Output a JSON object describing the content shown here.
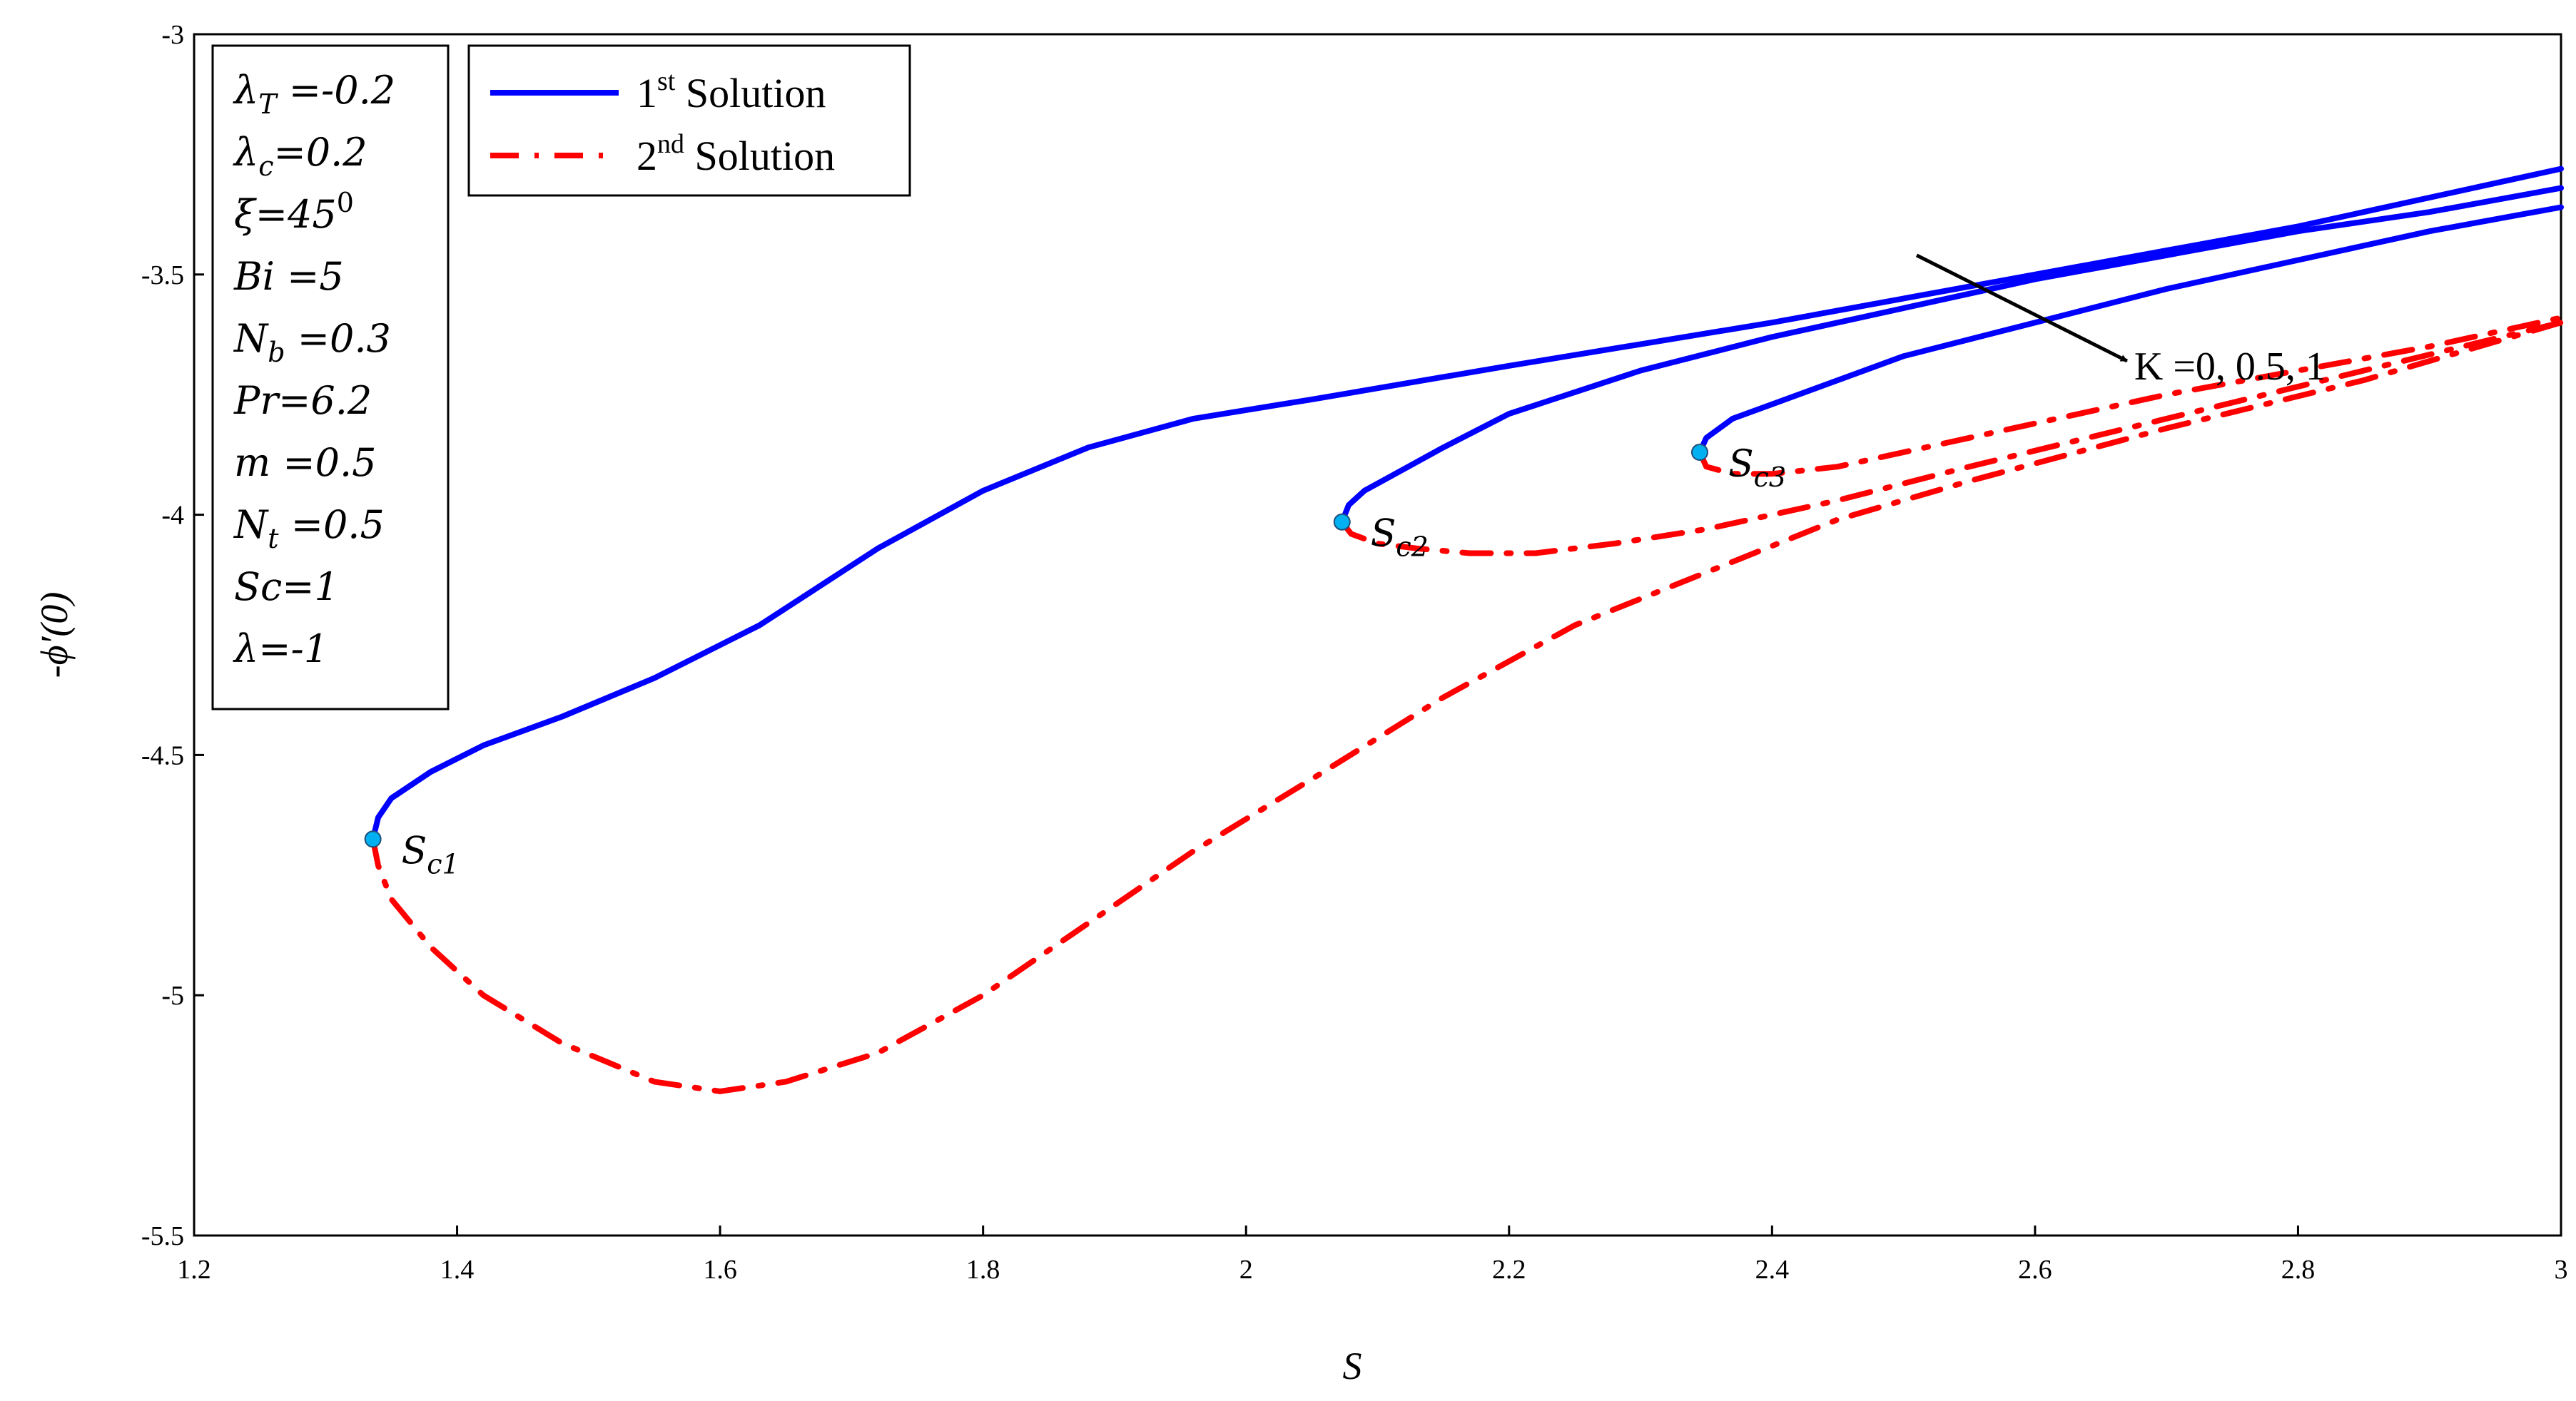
{
  "chart_data": {
    "type": "line",
    "title": "",
    "xlabel": "S",
    "ylabel": "-ϕ′(0)",
    "xlim": [
      1.2,
      3.0
    ],
    "ylim": [
      -5.5,
      -3.0
    ],
    "x_ticks": [
      "1.2",
      "1.4",
      "1.6",
      "1.8",
      "2",
      "2.2",
      "2.4",
      "2.6",
      "2.8",
      "3"
    ],
    "y_ticks": [
      "-3",
      "-3.5",
      "-4",
      "-4.5",
      "-5",
      "-5.5"
    ],
    "grid": false,
    "legend_position": "top-left",
    "legend": [
      {
        "label": "1",
        "sup": "st",
        "rest": " Solution",
        "color": "#0000ff",
        "style": "solid"
      },
      {
        "label": "2",
        "sup": "nd",
        "rest": " Solution",
        "color": "#ff0000",
        "style": "dash-dot"
      }
    ],
    "parameters": [
      {
        "base": "λ",
        "sub": "T",
        "rest": " =-0.2"
      },
      {
        "base": "λ",
        "sub": "c",
        "rest": "=0.2"
      },
      {
        "base": "ξ=45",
        "sup": "0",
        "rest": ""
      },
      {
        "base": "Bi =5",
        "rest": ""
      },
      {
        "base": "N",
        "sub": "b",
        "rest": " =0.3"
      },
      {
        "base": "Pr=6.2",
        "rest": ""
      },
      {
        "base": "m =0.5",
        "rest": ""
      },
      {
        "base": "N",
        "sub": "t",
        "rest": " =0.5"
      },
      {
        "base": "Sc=1",
        "rest": ""
      },
      {
        "base": "λ=-1",
        "rest": ""
      }
    ],
    "annotation": {
      "text": "K =0, 0.5, 1",
      "arrow_from": [
        2.51,
        -3.46
      ],
      "arrow_to": [
        2.67,
        -3.68
      ]
    },
    "critical_points": [
      {
        "label": "S",
        "sub": "c1",
        "x": 1.336,
        "y": -4.675
      },
      {
        "label": "S",
        "sub": "c2",
        "x": 2.073,
        "y": -4.015
      },
      {
        "label": "S",
        "sub": "c3",
        "x": 2.345,
        "y": -3.87
      }
    ],
    "series": [
      {
        "name": "1st Solution",
        "solution": 1,
        "K": 0,
        "color": "#0000ff",
        "x": [
          1.336,
          1.34,
          1.35,
          1.38,
          1.42,
          1.48,
          1.55,
          1.63,
          1.72,
          1.8,
          1.88,
          1.96,
          2.05,
          2.2,
          2.4,
          2.6,
          2.8,
          3.0
        ],
        "y": [
          -4.675,
          -4.63,
          -4.59,
          -4.535,
          -4.48,
          -4.42,
          -4.34,
          -4.23,
          -4.07,
          -3.95,
          -3.86,
          -3.8,
          -3.76,
          -3.69,
          -3.6,
          -3.5,
          -3.4,
          -3.28
        ]
      },
      {
        "name": "1st Solution",
        "solution": 1,
        "K": 0.5,
        "color": "#0000ff",
        "x": [
          2.073,
          2.078,
          2.09,
          2.11,
          2.15,
          2.2,
          2.3,
          2.4,
          2.5,
          2.6,
          2.7,
          2.8,
          2.9,
          3.0
        ],
        "y": [
          -4.015,
          -3.98,
          -3.95,
          -3.92,
          -3.86,
          -3.79,
          -3.7,
          -3.63,
          -3.57,
          -3.51,
          -3.46,
          -3.41,
          -3.37,
          -3.32
        ]
      },
      {
        "name": "1st Solution",
        "solution": 1,
        "K": 1,
        "color": "#0000ff",
        "x": [
          2.345,
          2.35,
          2.37,
          2.4,
          2.45,
          2.5,
          2.6,
          2.7,
          2.8,
          2.9,
          3.0
        ],
        "y": [
          -3.87,
          -3.84,
          -3.8,
          -3.77,
          -3.72,
          -3.67,
          -3.6,
          -3.53,
          -3.47,
          -3.41,
          -3.36
        ]
      },
      {
        "name": "2nd Solution",
        "solution": 2,
        "K": 0,
        "color": "#ff0000",
        "x": [
          1.336,
          1.34,
          1.35,
          1.38,
          1.42,
          1.48,
          1.55,
          1.6,
          1.65,
          1.72,
          1.8,
          1.88,
          1.96,
          2.05,
          2.15,
          2.25,
          2.35,
          2.45,
          2.55,
          2.7,
          2.85,
          3.0
        ],
        "y": [
          -4.675,
          -4.73,
          -4.8,
          -4.9,
          -5.0,
          -5.1,
          -5.18,
          -5.2,
          -5.18,
          -5.12,
          -5.0,
          -4.85,
          -4.7,
          -4.55,
          -4.38,
          -4.23,
          -4.12,
          -4.01,
          -3.93,
          -3.82,
          -3.72,
          -3.6
        ]
      },
      {
        "name": "2nd Solution",
        "solution": 2,
        "K": 0.5,
        "color": "#ff0000",
        "x": [
          2.073,
          2.08,
          2.1,
          2.13,
          2.17,
          2.22,
          2.28,
          2.35,
          2.45,
          2.55,
          2.7,
          2.85,
          3.0
        ],
        "y": [
          -4.015,
          -4.04,
          -4.06,
          -4.07,
          -4.08,
          -4.08,
          -4.06,
          -4.03,
          -3.97,
          -3.9,
          -3.8,
          -3.7,
          -3.6
        ]
      },
      {
        "name": "2nd Solution",
        "solution": 2,
        "K": 1,
        "color": "#ff0000",
        "x": [
          2.345,
          2.35,
          2.37,
          2.4,
          2.45,
          2.5,
          2.6,
          2.7,
          2.8,
          2.9,
          3.0
        ],
        "y": [
          -3.87,
          -3.9,
          -3.915,
          -3.915,
          -3.9,
          -3.87,
          -3.81,
          -3.75,
          -3.7,
          -3.65,
          -3.59
        ]
      }
    ]
  }
}
